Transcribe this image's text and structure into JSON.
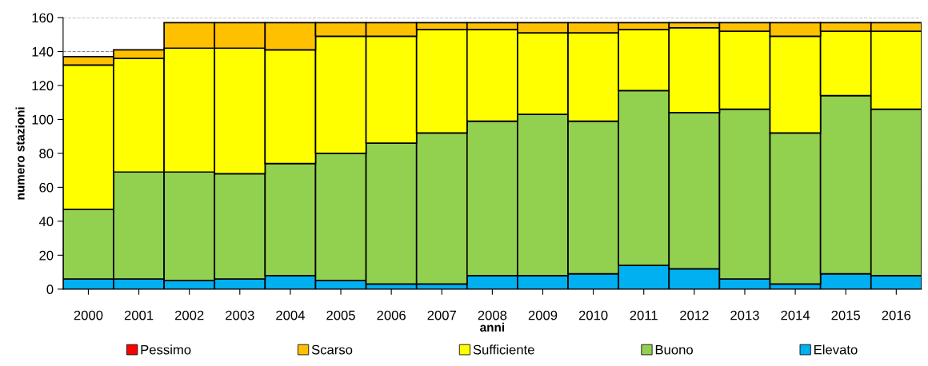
{
  "chart_data": {
    "type": "bar",
    "stacked": true,
    "xlabel": "anni",
    "ylabel": "numero stazioni",
    "categories": [
      "2000",
      "2001",
      "2002",
      "2003",
      "2004",
      "2005",
      "2006",
      "2007",
      "2008",
      "2009",
      "2010",
      "2011",
      "2012",
      "2013",
      "2014",
      "2015",
      "2016"
    ],
    "series": [
      {
        "name": "Elevato",
        "color": "#00b0f0",
        "values": [
          6,
          6,
          5,
          6,
          8,
          5,
          3,
          3,
          8,
          8,
          9,
          14,
          12,
          6,
          3,
          9,
          8
        ]
      },
      {
        "name": "Buono",
        "color": "#92d050",
        "values": [
          41,
          63,
          64,
          62,
          66,
          75,
          83,
          89,
          91,
          95,
          90,
          103,
          92,
          100,
          89,
          105,
          98
        ]
      },
      {
        "name": "Sufficiente",
        "color": "#ffff00",
        "values": [
          85,
          67,
          73,
          74,
          67,
          69,
          63,
          61,
          54,
          48,
          52,
          36,
          50,
          46,
          57,
          38,
          46
        ]
      },
      {
        "name": "Scarso",
        "color": "#ffc000",
        "values": [
          5,
          5,
          15,
          15,
          16,
          8,
          8,
          4,
          4,
          6,
          6,
          4,
          3,
          5,
          8,
          5,
          5
        ]
      },
      {
        "name": "Pessimo",
        "color": "#ff0000",
        "values": [
          0,
          0,
          0,
          0,
          0,
          0,
          0,
          0,
          0,
          0,
          0,
          0,
          0,
          0,
          0,
          0,
          0
        ]
      }
    ],
    "ylim": [
      0,
      160
    ],
    "yticks": [
      0,
      20,
      40,
      60,
      80,
      100,
      120,
      140,
      160
    ],
    "grid": "y",
    "legend": "bottom"
  }
}
